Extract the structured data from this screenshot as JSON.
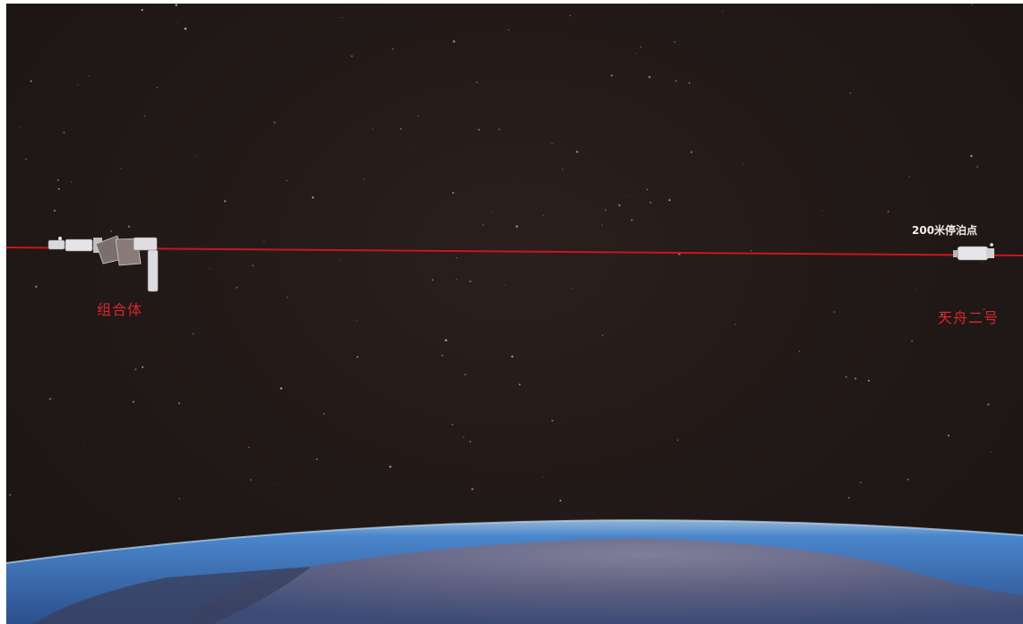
{
  "labels": {
    "combo": "组合体",
    "parking_point": "200米停泊点",
    "tianzhou": "天舟二号"
  },
  "colors": {
    "space": "#211917",
    "orbit_line": "#c8161d",
    "label_red": "#d8272d",
    "label_white": "#f1ede6",
    "earth_blue": "#3f6fb8",
    "earth_land": "#6a6580"
  },
  "icons": {
    "combo_spacecraft": "space-station-combination-icon",
    "cargo_ship": "cargo-spacecraft-icon"
  }
}
